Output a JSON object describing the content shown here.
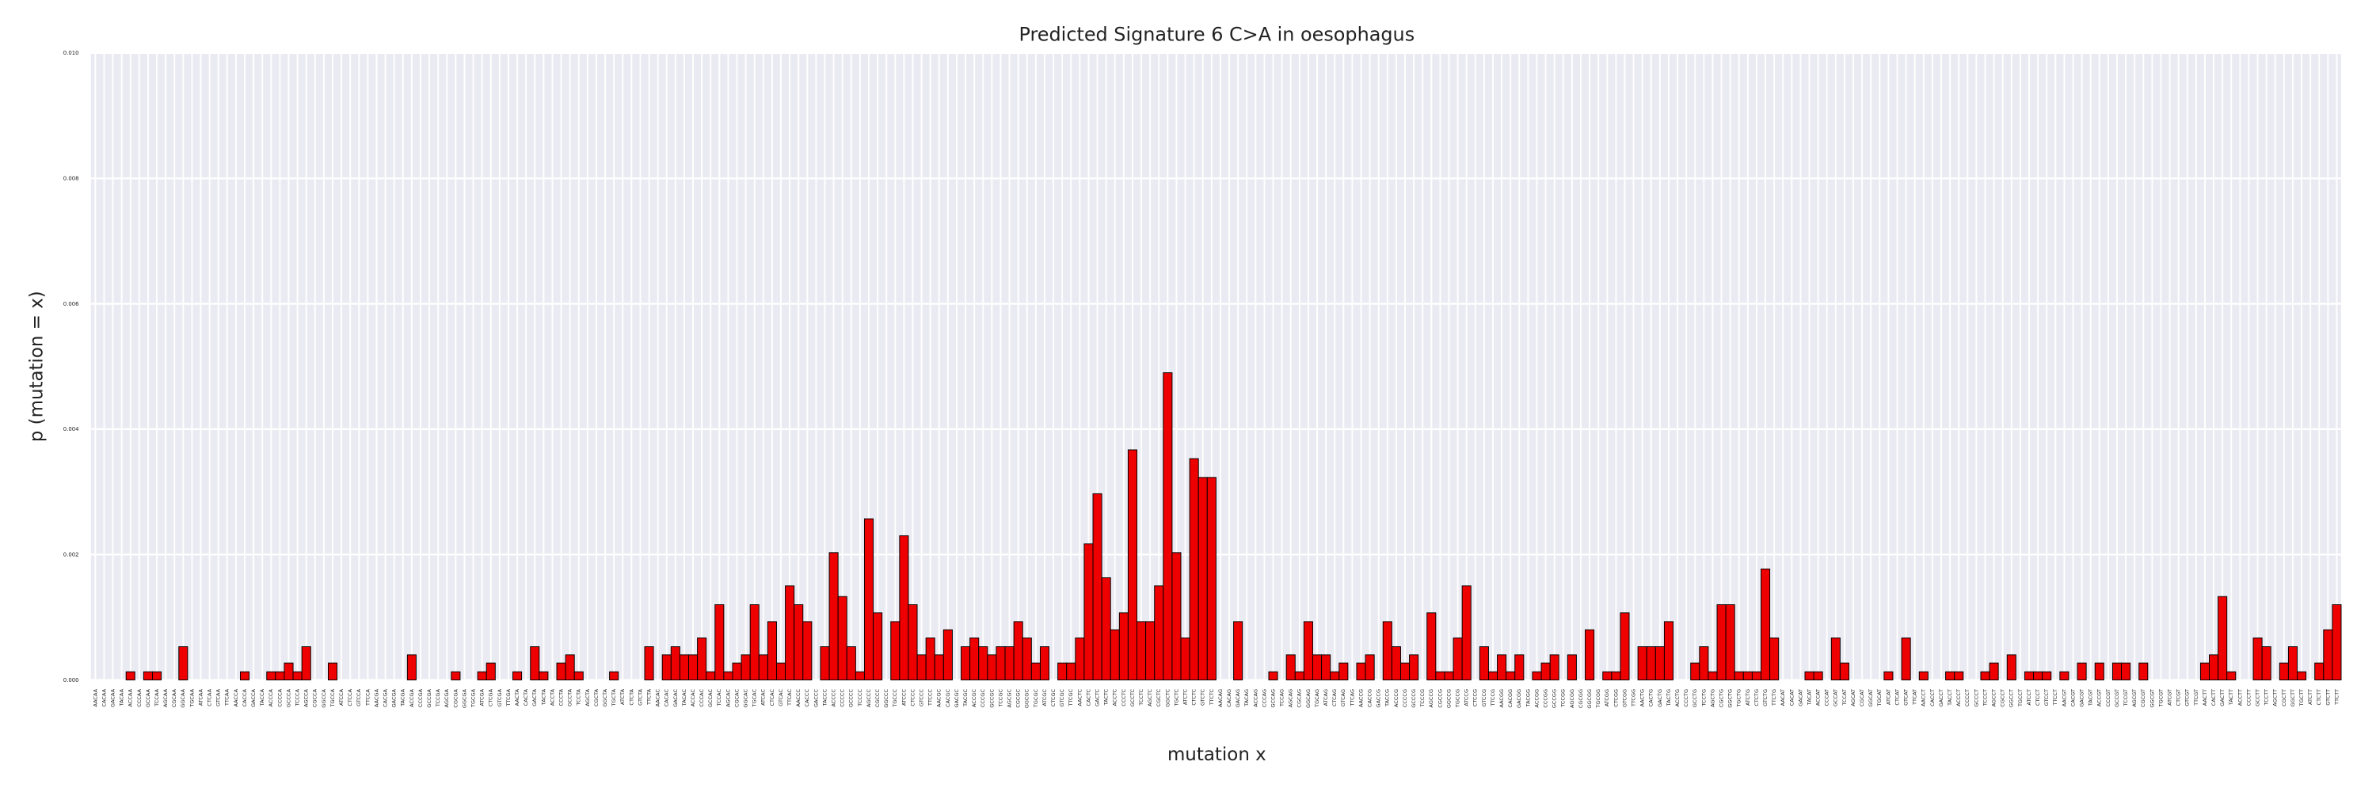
{
  "chart_data": {
    "type": "bar",
    "title": "Predicted Signature 6 C>A in oesophagus",
    "xlabel": "mutation x",
    "ylabel": "p (mutation = x)",
    "color": "#ee0000",
    "grid": true,
    "ylim": [
      0,
      0.01
    ],
    "yticks": [
      {
        "value": 0,
        "label": "0.000"
      },
      {
        "value": 0.002,
        "label": "0.002"
      },
      {
        "value": 0.004,
        "label": "0.004"
      },
      {
        "value": 0.006,
        "label": "0.006"
      },
      {
        "value": 0.008,
        "label": "0.008"
      },
      {
        "value": 0.01,
        "label": "0.010"
      }
    ],
    "categories": [
      "AACAA",
      "CACAA",
      "GACAA",
      "TACAA",
      "ACCAA",
      "CCCAA",
      "GCCAA",
      "TCCAA",
      "AGCAA",
      "CGCAA",
      "GGCAA",
      "TGCAA",
      "ATCAA",
      "CTCAA",
      "GTCAA",
      "TTCAA",
      "AACCA",
      "CACCA",
      "GACCA",
      "TACCA",
      "ACCCA",
      "CCCCA",
      "GCCCA",
      "TCCCA",
      "AGCCA",
      "CGCCA",
      "GGCCA",
      "TGCCA",
      "ATCCA",
      "CTCCA",
      "GTCCA",
      "TTCCA",
      "AACGA",
      "CACGA",
      "GACGA",
      "TACGA",
      "ACCGA",
      "CCCGA",
      "GCCGA",
      "TCCGA",
      "AGCGA",
      "CGCGA",
      "GGCGA",
      "TGCGA",
      "ATCGA",
      "CTCGA",
      "GTCGA",
      "TTCGA",
      "AACTA",
      "CACTA",
      "GACTA",
      "TACTA",
      "ACCTA",
      "CCCTA",
      "GCCTA",
      "TCCTA",
      "AGCTA",
      "CGCTA",
      "GGCTA",
      "TGCTA",
      "ATCTA",
      "CTCTA",
      "GTCTA",
      "TTCTA",
      "AACAC",
      "CACAC",
      "GACAC",
      "TACAC",
      "ACCAC",
      "CCCAC",
      "GCCAC",
      "TCCAC",
      "AGCAC",
      "CGCAC",
      "GGCAC",
      "TGCAC",
      "ATCAC",
      "CTCAC",
      "GTCAC",
      "TTCAC",
      "AACCC",
      "CACCC",
      "GACCC",
      "TACCC",
      "ACCCC",
      "CCCCC",
      "GCCCC",
      "TCCCC",
      "AGCCC",
      "CGCCC",
      "GGCCC",
      "TGCCC",
      "ATCCC",
      "CTCCC",
      "GTCCC",
      "TTCCC",
      "AACGC",
      "CACGC",
      "GACGC",
      "TACGC",
      "ACCGC",
      "CCCGC",
      "GCCGC",
      "TCCGC",
      "AGCGC",
      "CGCGC",
      "GGCGC",
      "TGCGC",
      "ATCGC",
      "CTCGC",
      "GTCGC",
      "TTCGC",
      "AACTC",
      "CACTC",
      "GACTC",
      "TACTC",
      "ACCTC",
      "CCCTC",
      "GCCTC",
      "TCCTC",
      "AGCTC",
      "CGCTC",
      "GGCTC",
      "TGCTC",
      "ATCTC",
      "CTCTC",
      "GTCTC",
      "TTCTC",
      "AACAG",
      "CACAG",
      "GACAG",
      "TACAG",
      "ACCAG",
      "CCCAG",
      "GCCAG",
      "TCCAG",
      "AGCAG",
      "CGCAG",
      "GGCAG",
      "TGCAG",
      "ATCAG",
      "CTCAG",
      "GTCAG",
      "TTCAG",
      "AACCG",
      "CACCG",
      "GACCG",
      "TACCG",
      "ACCCG",
      "CCCCG",
      "GCCCG",
      "TCCCG",
      "AGCCG",
      "CGCCG",
      "GGCCG",
      "TGCCG",
      "ATCCG",
      "CTCCG",
      "GTCCG",
      "TTCCG",
      "AACGG",
      "CACGG",
      "GACGG",
      "TACGG",
      "ACCGG",
      "CCCGG",
      "GCCGG",
      "TCCGG",
      "AGCGG",
      "CGCGG",
      "GGCGG",
      "TGCGG",
      "ATCGG",
      "CTCGG",
      "GTCGG",
      "TTCGG",
      "AACTG",
      "CACTG",
      "GACTG",
      "TACTG",
      "ACCTG",
      "CCCTG",
      "GCCTG",
      "TCCTG",
      "AGCTG",
      "CGCTG",
      "GGCTG",
      "TGCTG",
      "ATCTG",
      "CTCTG",
      "GTCTG",
      "TTCTG",
      "AACAT",
      "CACAT",
      "GACAT",
      "TACAT",
      "ACCAT",
      "CCCAT",
      "GCCAT",
      "TCCAT",
      "AGCAT",
      "CGCAT",
      "GGCAT",
      "TGCAT",
      "ATCAT",
      "CTCAT",
      "GTCAT",
      "TTCAT",
      "AACCT",
      "CACCT",
      "GACCT",
      "TACCT",
      "ACCCT",
      "CCCCT",
      "GCCCT",
      "TCCCT",
      "AGCCT",
      "CGCCT",
      "GGCCT",
      "TGCCT",
      "ATCCT",
      "CTCCT",
      "GTCCT",
      "TTCCT",
      "AACGT",
      "CACGT",
      "GACGT",
      "TACGT",
      "ACCGT",
      "CCCGT",
      "GCCGT",
      "TCCGT",
      "AGCGT",
      "CGCGT",
      "GGCGT",
      "TGCGT",
      "ATCGT",
      "CTCGT",
      "GTCGT",
      "TTCGT",
      "AACTT",
      "CACTT",
      "GACTT",
      "TACTT",
      "ACCTT",
      "CCCTT",
      "GCCTT",
      "TCCTT",
      "AGCTT",
      "CGCTT",
      "GGCTT",
      "TGCTT",
      "ATCTT",
      "CTCTT",
      "GTCTT",
      "TTCTT"
    ],
    "values": [
      0,
      0,
      0,
      0,
      0.00013,
      0,
      0.00013,
      0.00013,
      0,
      0,
      0.00053,
      0,
      0,
      0,
      0,
      0,
      0,
      0.00013,
      0,
      0,
      0.00013,
      0.00013,
      0.00027,
      0.00013,
      0.00053,
      0,
      0,
      0.00027,
      0,
      0,
      0,
      0,
      0,
      0,
      0,
      0,
      0.0004,
      0,
      0,
      0,
      0,
      0.00013,
      0,
      0,
      0.00013,
      0.00027,
      0,
      0,
      0.00013,
      0,
      0.00053,
      0.00013,
      0,
      0.00027,
      0.0004,
      0.00013,
      0,
      0,
      0,
      0.00013,
      0,
      0,
      0,
      0.00053,
      0,
      0.0004,
      0.00053,
      0.0004,
      0.0004,
      0.00067,
      0.00013,
      0.0012,
      0.00013,
      0.00027,
      0.0004,
      0.0012,
      0.0004,
      0.00093,
      0.00027,
      0.0015,
      0.0012,
      0.00093,
      0,
      0.00053,
      0.00203,
      0.00133,
      0.00053,
      0.00013,
      0.00257,
      0.00107,
      0,
      0.00093,
      0.0023,
      0.0012,
      0.0004,
      0.00067,
      0.0004,
      0.0008,
      0,
      0.00053,
      0.00067,
      0.00053,
      0.0004,
      0.00053,
      0.00053,
      0.00093,
      0.00067,
      0.00027,
      0.00053,
      0,
      0.00027,
      0.00027,
      0.00067,
      0.00217,
      0.00297,
      0.00163,
      0.0008,
      0.00107,
      0.00367,
      0.00093,
      0.00093,
      0.0015,
      0.0049,
      0.00203,
      0.00067,
      0.00353,
      0.00323,
      0.00323,
      0,
      0,
      0.00093,
      0,
      0,
      0,
      0.00013,
      0,
      0.0004,
      0.00013,
      0.00093,
      0.0004,
      0.0004,
      0.00013,
      0.00027,
      0,
      0.00027,
      0.0004,
      0,
      0.00093,
      0.00053,
      0.00027,
      0.0004,
      0,
      0.00107,
      0.00013,
      0.00013,
      0.00067,
      0.0015,
      0,
      0.00053,
      0.00013,
      0.0004,
      0.00013,
      0.0004,
      0,
      0.00013,
      0.00027,
      0.0004,
      0,
      0.0004,
      0,
      0.0008,
      0,
      0.00013,
      0.00013,
      0.00107,
      0,
      0.00053,
      0.00053,
      0.00053,
      0.00093,
      0,
      0,
      0.00027,
      0.00053,
      0.00013,
      0.0012,
      0.0012,
      0.00013,
      0.00013,
      0.00013,
      0.00177,
      0.00067,
      0,
      0,
      0,
      0.00013,
      0.00013,
      0,
      0.00067,
      0.00027,
      0,
      0,
      0,
      0,
      0.00013,
      0,
      0.00067,
      0,
      0.00013,
      0,
      0,
      0.00013,
      0.00013,
      0,
      0,
      0.00013,
      0.00027,
      0,
      0.0004,
      0,
      0.00013,
      0.00013,
      0.00013,
      0,
      0.00013,
      0,
      0.00027,
      0,
      0.00027,
      0,
      0.00027,
      0.00027,
      0,
      0.00027,
      0,
      0,
      0,
      0,
      0,
      0,
      0.00027,
      0.0004,
      0.00133,
      0.00013,
      0,
      0,
      0.00067,
      0.00053,
      0,
      0.00027,
      0.00053,
      0.00013,
      0,
      0.00027,
      0.0008,
      0.0012
    ]
  }
}
